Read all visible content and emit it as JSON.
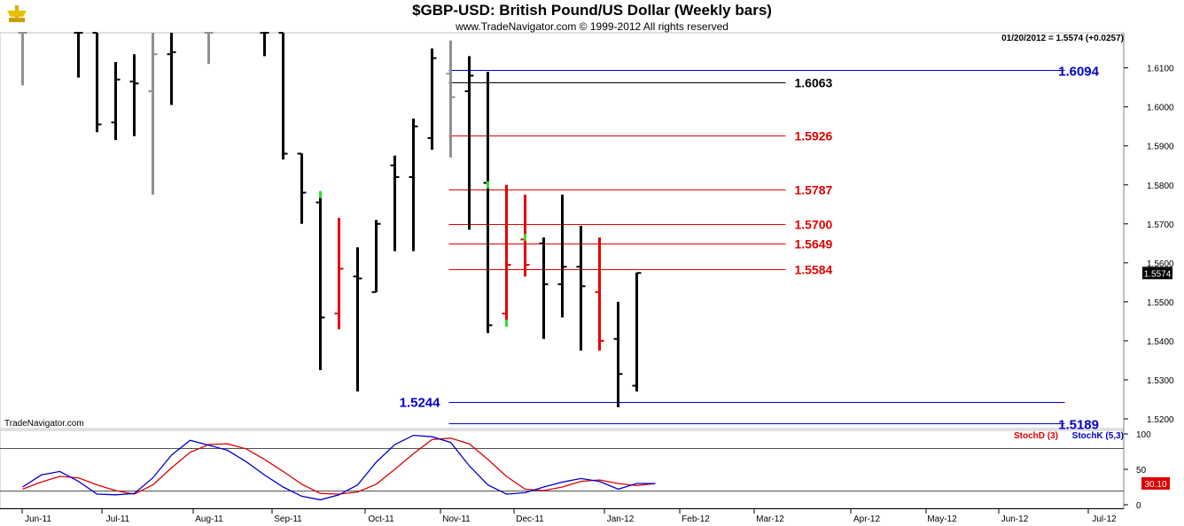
{
  "chart_data": {
    "type": "bar",
    "title": "$GBP-USD:  British Pound/US Dollar  (Weekly bars)",
    "subtitle": "www.TradeNavigator.com © 1999-2012 All rights reserved",
    "watermark": "TradeNavigator.com",
    "info": "01/20/2012 = 1.5574 (+0.0257)",
    "last_price_label": "1.5574",
    "ylim": [
      1.5175,
      1.619
    ],
    "y_ticks": [
      "1.5200",
      "1.5300",
      "1.5400",
      "1.5500",
      "1.5600",
      "1.5700",
      "1.5800",
      "1.5900",
      "1.6000",
      "1.6100"
    ],
    "x_labels": [
      "Jun-11",
      "Jul-11",
      "Aug-11",
      "Sep-11",
      "Oct-11",
      "Nov-11",
      "Dec-11",
      "Jan-12",
      "Feb-12",
      "Mar-12",
      "Apr-12",
      "May-12",
      "Jun-12",
      "Jul-12"
    ],
    "colors": {
      "up_down": "#000000",
      "gray": "#909090",
      "red": "#e60000",
      "green": "#33dd33",
      "blue_level": "#0000cc",
      "red_level": "#e00000"
    },
    "bars": [
      {
        "i": 0,
        "high": 1.619,
        "low": 1.6055,
        "open": 1.619,
        "close": 1.619,
        "color": "gray"
      },
      {
        "i": 3,
        "high": 1.619,
        "low": 1.6075,
        "open": 1.619,
        "close": 1.619,
        "color": "black"
      },
      {
        "i": 4,
        "high": 1.619,
        "low": 1.5935,
        "open": 1.619,
        "close": 1.5955,
        "color": "black"
      },
      {
        "i": 5,
        "high": 1.6115,
        "low": 1.5915,
        "open": 1.596,
        "close": 1.607,
        "color": "black"
      },
      {
        "i": 6,
        "high": 1.6135,
        "low": 1.5925,
        "open": 1.6065,
        "close": 1.606,
        "color": "black"
      },
      {
        "i": 7,
        "high": 1.619,
        "low": 1.5775,
        "open": 1.604,
        "close": 1.6135,
        "color": "gray"
      },
      {
        "i": 8,
        "high": 1.619,
        "low": 1.6005,
        "open": 1.6135,
        "close": 1.614,
        "color": "black"
      },
      {
        "i": 10,
        "high": 1.619,
        "low": 1.611,
        "open": 1.619,
        "close": 1.619,
        "color": "gray"
      },
      {
        "i": 13,
        "high": 1.619,
        "low": 1.613,
        "open": 1.619,
        "close": 1.619,
        "color": "black"
      },
      {
        "i": 14,
        "high": 1.619,
        "low": 1.5865,
        "open": 1.619,
        "close": 1.588,
        "color": "black"
      },
      {
        "i": 15,
        "high": 1.588,
        "low": 1.57,
        "open": 1.588,
        "close": 1.578,
        "color": "black"
      },
      {
        "i": 16,
        "high": 1.5775,
        "low": 1.5325,
        "open": 1.5755,
        "close": 1.546,
        "color": "black"
      },
      {
        "i": 17,
        "high": 1.5715,
        "low": 1.543,
        "open": 1.547,
        "close": 1.5585,
        "color": "red"
      },
      {
        "i": 18,
        "high": 1.564,
        "low": 1.527,
        "open": 1.5565,
        "close": 1.556,
        "color": "black"
      },
      {
        "i": 19,
        "high": 1.571,
        "low": 1.5525,
        "open": 1.5525,
        "close": 1.57,
        "color": "black"
      },
      {
        "i": 20,
        "high": 1.5875,
        "low": 1.563,
        "open": 1.585,
        "close": 1.582,
        "color": "black"
      },
      {
        "i": 21,
        "high": 1.597,
        "low": 1.563,
        "open": 1.582,
        "close": 1.595,
        "color": "black"
      },
      {
        "i": 22,
        "high": 1.615,
        "low": 1.589,
        "open": 1.592,
        "close": 1.6125,
        "color": "black"
      },
      {
        "i": 23,
        "high": 1.617,
        "low": 1.587,
        "open": 1.6085,
        "close": 1.6025,
        "color": "gray"
      },
      {
        "i": 24,
        "high": 1.613,
        "low": 1.5685,
        "open": 1.604,
        "close": 1.608,
        "color": "black"
      },
      {
        "i": 25,
        "high": 1.609,
        "low": 1.542,
        "open": 1.5805,
        "close": 1.544,
        "color": "black"
      },
      {
        "i": 26,
        "high": 1.58,
        "low": 1.544,
        "open": 1.547,
        "close": 1.5595,
        "color": "red"
      },
      {
        "i": 27,
        "high": 1.5775,
        "low": 1.5565,
        "open": 1.566,
        "close": 1.5595,
        "color": "red"
      },
      {
        "i": 28,
        "high": 1.5665,
        "low": 1.5405,
        "open": 1.565,
        "close": 1.5545,
        "color": "black"
      },
      {
        "i": 29,
        "high": 1.5775,
        "low": 1.546,
        "open": 1.5545,
        "close": 1.559,
        "color": "black"
      },
      {
        "i": 30,
        "high": 1.5695,
        "low": 1.5375,
        "open": 1.559,
        "close": 1.554,
        "color": "black"
      },
      {
        "i": 31,
        "high": 1.5665,
        "low": 1.5375,
        "open": 1.5525,
        "close": 1.54,
        "color": "red"
      },
      {
        "i": 32,
        "high": 1.55,
        "low": 1.523,
        "open": 1.5405,
        "close": 1.5315,
        "color": "black"
      },
      {
        "i": 33,
        "high": 1.5575,
        "low": 1.527,
        "open": 1.5285,
        "close": 1.5574,
        "color": "black"
      }
    ],
    "green_marks": [
      {
        "i": 16,
        "value": 1.5775
      },
      {
        "i": 25,
        "value": 1.58
      },
      {
        "i": 26,
        "value": 1.5445
      },
      {
        "i": 27,
        "value": 1.5665
      }
    ],
    "levels": [
      {
        "value": 1.6094,
        "label": "1.6094",
        "color": "#0000cc",
        "from_i": 23,
        "to_i": 56,
        "label_at": "right"
      },
      {
        "value": 1.6063,
        "label": "1.6063",
        "color": "#000000",
        "from_i": 23,
        "to_i": 41,
        "label_at": "end"
      },
      {
        "value": 1.5926,
        "label": "1.5926",
        "color": "#e00000",
        "from_i": 23,
        "to_i": 41,
        "label_at": "end"
      },
      {
        "value": 1.5787,
        "label": "1.5787",
        "color": "#e00000",
        "from_i": 23,
        "to_i": 41,
        "label_at": "end"
      },
      {
        "value": 1.57,
        "label": "1.5700",
        "color": "#e00000",
        "from_i": 23,
        "to_i": 41,
        "label_at": "end"
      },
      {
        "value": 1.5649,
        "label": "1.5649",
        "color": "#e00000",
        "from_i": 23,
        "to_i": 41,
        "label_at": "end"
      },
      {
        "value": 1.5584,
        "label": "1.5584",
        "color": "#e00000",
        "from_i": 23,
        "to_i": 41,
        "label_at": "end"
      },
      {
        "value": 1.5244,
        "label": "1.5244",
        "color": "#0000cc",
        "from_i": 23,
        "to_i": 56,
        "label_at": "left"
      },
      {
        "value": 1.5189,
        "label": "1.5189",
        "color": "#0000cc",
        "from_i": 23,
        "to_i": 56,
        "label_at": "right"
      }
    ],
    "stochastic": {
      "ylim": [
        0,
        100
      ],
      "y_ticks": [
        "100",
        "50",
        "0"
      ],
      "reference_lines": [
        80,
        20
      ],
      "last_value_label": "30.10",
      "legend": [
        {
          "name": "StochD (3)",
          "color": "#dd0000"
        },
        {
          "name": "StochK (5,3)",
          "color": "#0000cc"
        }
      ],
      "series": [
        {
          "name": "StochD (3)",
          "color": "#dd0000",
          "values": [
            22,
            32,
            40,
            38,
            28,
            20,
            15,
            28,
            52,
            74,
            85,
            86,
            79,
            64,
            47,
            29,
            16,
            15,
            18,
            29,
            50,
            72,
            92,
            94,
            86,
            64,
            40,
            22,
            20,
            25,
            33,
            35,
            30,
            27,
            30
          ]
        },
        {
          "name": "StochK (5,3)",
          "color": "#0000cc",
          "values": [
            25,
            42,
            47,
            33,
            15,
            14,
            16,
            38,
            70,
            91,
            84,
            77,
            61,
            42,
            25,
            12,
            7,
            14,
            28,
            60,
            85,
            98,
            96,
            88,
            55,
            28,
            15,
            17,
            25,
            32,
            37,
            33,
            22,
            30,
            30
          ]
        }
      ]
    }
  }
}
